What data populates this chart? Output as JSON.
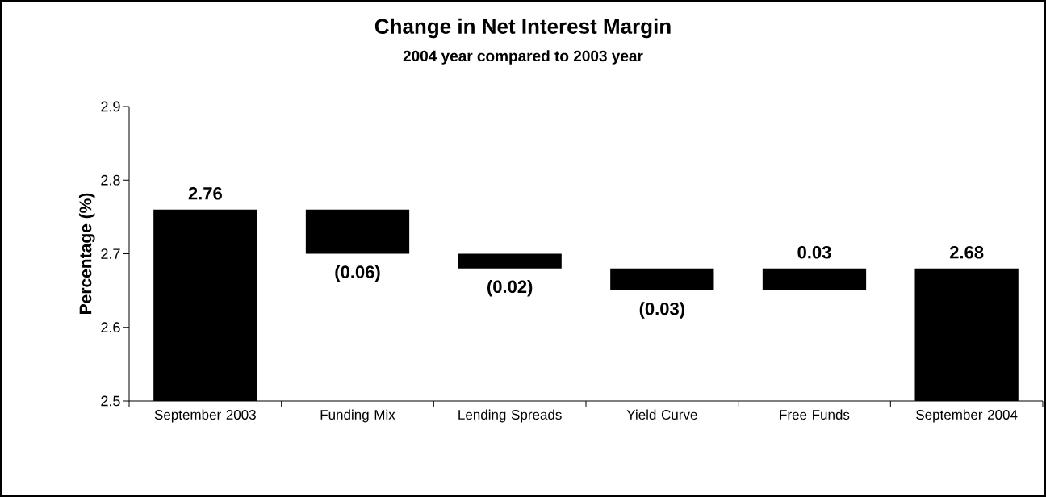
{
  "chart_data": {
    "type": "bar",
    "title": "Change in Net Interest Margin",
    "subtitle": "2004 year compared to 2003 year",
    "ylabel": "Percentage (%)",
    "categories": [
      "September 2003",
      "Funding Mix",
      "Lending Spreads",
      "Yield Curve",
      "Free Funds",
      "September 2004"
    ],
    "base": [
      null,
      2.76,
      2.7,
      2.68,
      2.65,
      null
    ],
    "values": [
      2.76,
      -0.06,
      -0.02,
      -0.03,
      0.03,
      2.68
    ],
    "value_labels": [
      "2.76",
      "(0.06)",
      "(0.02)",
      "(0.03)",
      "0.03",
      "2.68"
    ],
    "color": "#000000",
    "ylim": [
      2.5,
      2.9
    ],
    "yticks": [
      2.5,
      2.6,
      2.7,
      2.8,
      2.9
    ]
  }
}
